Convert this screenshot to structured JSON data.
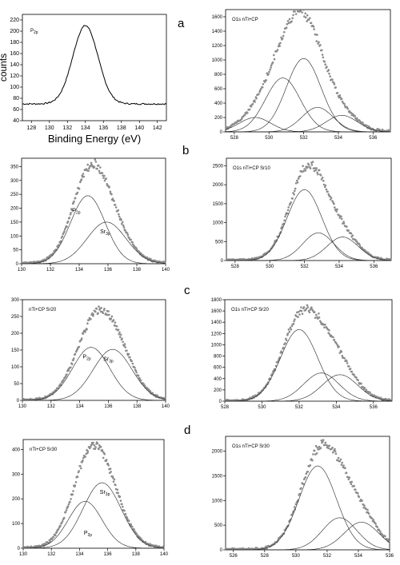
{
  "panel_labels": [
    "a",
    "b",
    "c",
    "d"
  ],
  "chart_data": [
    {
      "type": "line",
      "panel": "P2p reference",
      "title": "P2p",
      "xlabel": "Binding Energy (eV)",
      "ylabel": "counts",
      "xlim": [
        127,
        143
      ],
      "ylim": [
        40,
        230
      ],
      "xticks": [
        128,
        130,
        132,
        134,
        136,
        138,
        140,
        142
      ],
      "yticks": [
        40,
        60,
        80,
        100,
        120,
        140,
        160,
        180,
        200,
        220
      ],
      "series": [
        {
          "center": 134.0,
          "width": 1.4,
          "height": 140,
          "base": 70
        }
      ],
      "noisy_points": false,
      "fit_lines": false,
      "grid": false
    },
    {
      "type": "scatter",
      "panel": "a",
      "title": "O1s nTi+CP",
      "xlim": [
        527.5,
        537
      ],
      "ylim": [
        0,
        1700
      ],
      "xticks": [
        528,
        530,
        532,
        534,
        536
      ],
      "yticks": [
        0,
        200,
        400,
        600,
        800,
        1000,
        1200,
        1400,
        1600
      ],
      "series": [
        {
          "center": 529.2,
          "width": 0.9,
          "height": 200
        },
        {
          "center": 530.8,
          "width": 1.0,
          "height": 750
        },
        {
          "center": 532.0,
          "width": 1.0,
          "height": 1020
        },
        {
          "center": 532.8,
          "width": 0.9,
          "height": 340
        },
        {
          "center": 534.2,
          "width": 0.9,
          "height": 230
        }
      ],
      "noisy_points": true,
      "fit_lines": true,
      "grid": false
    },
    {
      "type": "scatter",
      "panel": "P2p/Sr3p b",
      "title": "",
      "xlim": [
        130,
        140
      ],
      "ylim": [
        0,
        380
      ],
      "xticks": [
        130,
        132,
        134,
        136,
        138,
        140
      ],
      "yticks": [
        0,
        50,
        100,
        150,
        200,
        250,
        300,
        350
      ],
      "peak_labels": [
        {
          "text": "P",
          "sub": "2p",
          "x": 133.8,
          "y": 185
        },
        {
          "text": "Sr",
          "sub": "3p",
          "x": 135.8,
          "y": 110
        }
      ],
      "series": [
        {
          "center": 134.6,
          "width": 1.2,
          "height": 245
        },
        {
          "center": 135.9,
          "width": 1.35,
          "height": 150
        }
      ],
      "noisy_points": true,
      "fit_lines": true,
      "grid": false
    },
    {
      "type": "scatter",
      "panel": "b",
      "title": "O1s nTi+CP Sr10",
      "xlim": [
        527.5,
        537
      ],
      "ylim": [
        0,
        2700
      ],
      "xticks": [
        528,
        530,
        532,
        534,
        536
      ],
      "yticks": [
        0,
        500,
        1000,
        1500,
        2000,
        2500
      ],
      "series": [
        {
          "center": 532.0,
          "width": 1.0,
          "height": 1870
        },
        {
          "center": 532.8,
          "width": 0.9,
          "height": 730
        },
        {
          "center": 534.2,
          "width": 0.9,
          "height": 620
        }
      ],
      "noisy_points": true,
      "fit_lines": true,
      "grid": false
    },
    {
      "type": "scatter",
      "panel": "P2p/Sr3p c",
      "title": "nTi+CP Sr20",
      "xlim": [
        130,
        140
      ],
      "ylim": [
        0,
        300
      ],
      "xticks": [
        130,
        132,
        134,
        136,
        138,
        140
      ],
      "yticks": [
        0,
        50,
        100,
        150,
        200,
        250,
        300
      ],
      "peak_labels": [
        {
          "text": "P",
          "sub": "2p",
          "x": 134.5,
          "y": 125
        },
        {
          "text": "Sr",
          "sub": "3p",
          "x": 136.0,
          "y": 118
        }
      ],
      "series": [
        {
          "center": 134.8,
          "width": 1.3,
          "height": 158
        },
        {
          "center": 136.3,
          "width": 1.35,
          "height": 152
        }
      ],
      "noisy_points": true,
      "fit_lines": true,
      "grid": false
    },
    {
      "type": "scatter",
      "panel": "c",
      "title": "O1s nTi+CP Sr20",
      "xlim": [
        528,
        537
      ],
      "ylim": [
        0,
        1800
      ],
      "xticks": [
        528,
        530,
        532,
        534,
        536
      ],
      "yticks": [
        0,
        200,
        400,
        600,
        800,
        1000,
        1200,
        1400,
        1600,
        1800
      ],
      "series": [
        {
          "center": 532.0,
          "width": 1.0,
          "height": 1270
        },
        {
          "center": 533.2,
          "width": 0.95,
          "height": 500
        },
        {
          "center": 534.2,
          "width": 0.95,
          "height": 470
        }
      ],
      "noisy_points": true,
      "fit_lines": true,
      "grid": false
    },
    {
      "type": "scatter",
      "panel": "P2p/Sr3p d",
      "title": "nTi+CP Sr30",
      "xlim": [
        130,
        140
      ],
      "ylim": [
        0,
        440
      ],
      "xticks": [
        130,
        132,
        134,
        136,
        138,
        140
      ],
      "yticks": [
        0,
        100,
        200,
        300,
        400
      ],
      "peak_labels": [
        {
          "text": "Sr",
          "sub": "3p",
          "x": 135.8,
          "y": 220
        },
        {
          "text": "P",
          "sub": "2p",
          "x": 134.6,
          "y": 55
        }
      ],
      "series": [
        {
          "center": 134.4,
          "width": 1.2,
          "height": 190
        },
        {
          "center": 135.6,
          "width": 1.35,
          "height": 265
        }
      ],
      "noisy_points": true,
      "fit_lines": true,
      "grid": false
    },
    {
      "type": "scatter",
      "panel": "d",
      "title": "O1s nTi+CP Sr30",
      "xlim": [
        525.5,
        536
      ],
      "ylim": [
        0,
        2300
      ],
      "xticks": [
        526,
        528,
        530,
        532,
        534,
        536
      ],
      "yticks": [
        0,
        500,
        1000,
        1500,
        2000
      ],
      "series": [
        {
          "center": 531.4,
          "width": 1.2,
          "height": 1700
        },
        {
          "center": 532.8,
          "width": 1.1,
          "height": 650
        },
        {
          "center": 534.2,
          "width": 1.1,
          "height": 560
        }
      ],
      "noisy_points": true,
      "fit_lines": true,
      "grid": false
    }
  ]
}
